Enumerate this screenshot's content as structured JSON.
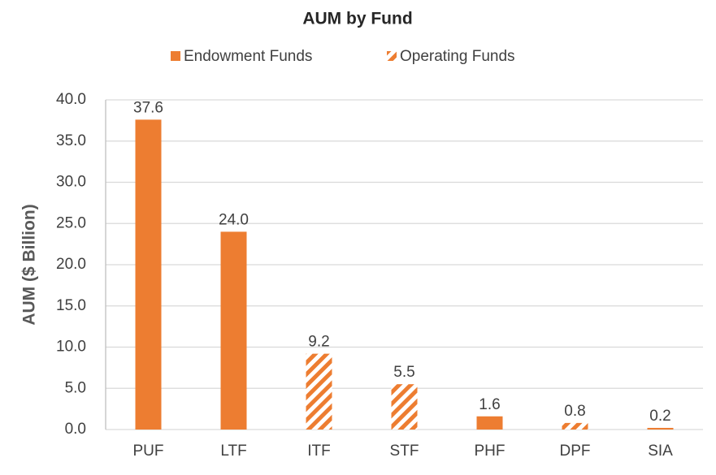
{
  "chart_data": {
    "type": "bar",
    "title": "AUM by Fund",
    "ylabel": "AUM ($ Billion)",
    "categories": [
      "PUF",
      "LTF",
      "ITF",
      "STF",
      "PHF",
      "DPF",
      "SIA"
    ],
    "series": [
      {
        "name": "Endowment Funds",
        "color": "#ED7D31",
        "pattern": "solid",
        "values": [
          37.6,
          24.0,
          null,
          null,
          1.6,
          null,
          0.2
        ],
        "value_labels": [
          "37.6",
          "24.0",
          null,
          null,
          "1.6",
          null,
          "0.2"
        ]
      },
      {
        "name": "Operating Funds",
        "color": "#ED7D31",
        "pattern": "hatch",
        "values": [
          null,
          null,
          9.2,
          5.5,
          null,
          0.8,
          null
        ]
      }
    ],
    "ylim": [
      0,
      40
    ],
    "yticks": [
      {
        "value": 0,
        "label": "0.0"
      },
      {
        "value": 5,
        "label": "5.0"
      },
      {
        "value": 10,
        "label": "10.0"
      },
      {
        "value": 15,
        "label": "15.0"
      },
      {
        "value": 20,
        "label": "20.0"
      },
      {
        "value": 25,
        "label": "25.0"
      },
      {
        "value": 30,
        "label": "30.0"
      },
      {
        "value": 35,
        "label": "35.0"
      },
      {
        "value": 40,
        "label": "40.0"
      }
    ],
    "grid": true,
    "legend": "top"
  }
}
